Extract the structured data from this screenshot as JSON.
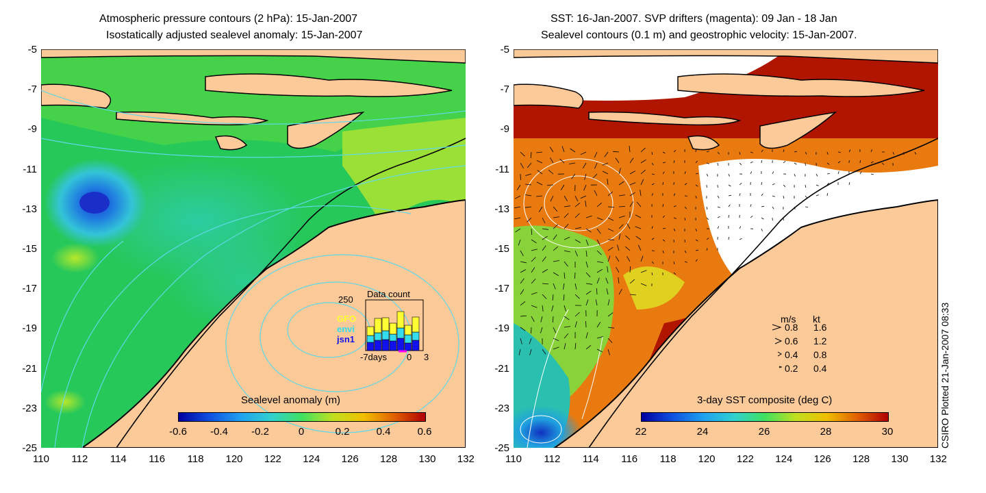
{
  "left_panel": {
    "title_line1": "Atmospheric pressure contours (2 hPa): 15-Jan-2007",
    "title_line2": "Isostatically adjusted sealevel anomaly: 15-Jan-2007",
    "colorbar": {
      "title": "Sealevel anomaly (m)",
      "ticks": [
        "-0.6",
        "-0.4",
        "-0.2",
        "0",
        "0.2",
        "0.4",
        "0.6"
      ],
      "range": [
        -0.6,
        0.6
      ]
    },
    "data_count": {
      "title": "Data count",
      "ymax_label": "250",
      "xlabel_left": "-7days",
      "xlabel_mid": "0",
      "xlabel_right": "3",
      "series": [
        {
          "name": "GFO",
          "color": "#ffff33"
        },
        {
          "name": "envi",
          "color": "#33ddee"
        },
        {
          "name": "jsn1",
          "color": "#1111ee"
        }
      ]
    }
  },
  "right_panel": {
    "title_line1": "SST: 16-Jan-2007. SVP drifters (magenta): 09 Jan - 18 Jan",
    "title_line2": "Sealevel contours (0.1 m) and geostrophic velocity: 15-Jan-2007.",
    "colorbar": {
      "title": "3-day SST composite (deg C)",
      "ticks": [
        "22",
        "24",
        "26",
        "28",
        "30"
      ],
      "range": [
        22,
        30
      ]
    },
    "speed_legend": {
      "header_ms": "m/s",
      "header_kt": "kt",
      "rows": [
        {
          "ms": "0.8",
          "kt": "1.6"
        },
        {
          "ms": "0.6",
          "kt": "1.2"
        },
        {
          "ms": "0.4",
          "kt": "0.8"
        },
        {
          "ms": "0.2",
          "kt": "0.4"
        }
      ]
    }
  },
  "axes": {
    "x_ticks": [
      "110",
      "112",
      "114",
      "116",
      "118",
      "120",
      "122",
      "124",
      "126",
      "128",
      "130",
      "132"
    ],
    "y_ticks": [
      "-5",
      "-7",
      "-9",
      "-11",
      "-13",
      "-15",
      "-17",
      "-19",
      "-21",
      "-23",
      "-25"
    ],
    "xlim": [
      110,
      132
    ],
    "ylim": [
      -25,
      -5
    ]
  },
  "credit": "CSIRO Plotted 21-Jan-2007 08:33",
  "chart_data": [
    {
      "type": "heatmap",
      "title": "Atmospheric pressure contours (2 hPa): 15-Jan-2007 / Isostatically adjusted sealevel anomaly: 15-Jan-2007",
      "xlabel": "",
      "ylabel": "",
      "xlim": [
        110,
        132
      ],
      "ylim": [
        -25,
        -5
      ],
      "colorbar_label": "Sealevel anomaly (m)",
      "colorbar_range": [
        -0.6,
        0.6
      ],
      "features": {
        "anomaly_low_center": {
          "lon": 112.8,
          "lat": -12.7,
          "value": -0.45
        },
        "background_value": 0.1
      },
      "inset": {
        "type": "bar",
        "title": "Data count",
        "ymax": 250,
        "x_range_days": [
          -7,
          3
        ],
        "series": [
          "GFO",
          "envi",
          "jsn1"
        ]
      }
    },
    {
      "type": "heatmap",
      "title": "SST: 16-Jan-2007. SVP drifters (magenta): 09 Jan - 18 Jan / Sealevel contours (0.1 m) and geostrophic velocity: 15-Jan-2007.",
      "xlabel": "",
      "ylabel": "",
      "xlim": [
        110,
        132
      ],
      "ylim": [
        -25,
        -5
      ],
      "colorbar_label": "3-day SST composite (deg C)",
      "colorbar_range": [
        22,
        30
      ],
      "velocity_legend_ms": [
        0.8,
        0.6,
        0.4,
        0.2
      ],
      "velocity_legend_kt": [
        1.6,
        1.2,
        0.8,
        0.4
      ]
    }
  ]
}
